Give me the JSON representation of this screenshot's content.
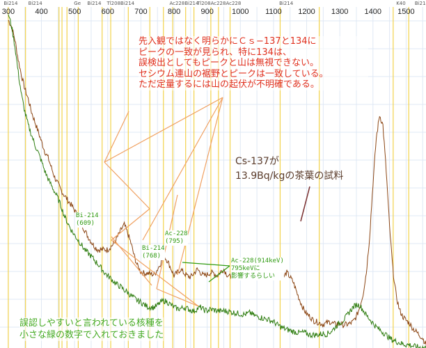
{
  "chart_data": {
    "type": "line",
    "x": [
      300,
      310,
      320,
      330,
      340,
      350,
      360,
      370,
      380,
      390,
      400,
      410,
      420,
      430,
      440,
      450,
      460,
      470,
      480,
      490,
      500,
      510,
      520,
      530,
      540,
      550,
      560,
      570,
      580,
      590,
      600,
      610,
      620,
      630,
      640,
      650,
      660,
      670,
      680,
      690,
      700,
      710,
      720,
      730,
      740,
      750,
      760,
      770,
      780,
      790,
      800,
      810,
      820,
      830,
      840,
      850,
      860,
      870,
      880,
      890,
      900,
      910,
      920,
      930,
      940,
      950,
      960,
      970,
      980,
      990,
      1000,
      1010,
      1020,
      1030,
      1040,
      1050,
      1060,
      1070,
      1080,
      1090,
      1100,
      1110,
      1120,
      1130,
      1140,
      1150,
      1160,
      1170,
      1180,
      1190,
      1200,
      1210,
      1220,
      1230,
      1240,
      1250,
      1260,
      1270,
      1280,
      1290,
      1300,
      1310,
      1320,
      1330,
      1340,
      1350,
      1360,
      1370,
      1380,
      1390,
      1400,
      1410,
      1420,
      1430,
      1440,
      1450,
      1460,
      1470,
      1480,
      1490,
      1500,
      1510,
      1520,
      1530,
      1540,
      1550,
      1560
    ],
    "series": [
      {
        "name": "",
        "color": "#8b4513",
        "values": [
          500,
          490,
          470,
          440,
          415,
          395,
          380,
          360,
          345,
          330,
          315,
          300,
          290,
          275,
          260,
          250,
          240,
          232,
          225,
          218,
          210,
          200,
          190,
          180,
          170,
          162,
          155,
          150,
          150,
          150,
          150,
          155,
          160,
          170,
          180,
          188,
          175,
          160,
          140,
          125,
          116,
          114,
          114,
          113,
          112,
          120,
          130,
          140,
          133,
          122,
          110,
          115,
          120,
          114,
          110,
          108,
          114,
          120,
          115,
          110,
          112,
          115,
          114,
          110,
          116,
          120,
          112,
          108,
          112,
          114,
          108,
          112,
          118,
          112,
          110,
          114,
          120,
          118,
          112,
          118,
          120,
          113,
          110,
          108,
          115,
          108,
          100,
          85,
          72,
          60,
          52,
          48,
          42,
          40,
          38,
          36,
          38,
          40,
          37,
          36,
          38,
          35,
          36,
          37,
          40,
          48,
          62,
          82,
          115,
          170,
          250,
          320,
          355,
          340,
          270,
          185,
          120,
          80,
          58,
          48,
          42,
          38,
          30,
          25,
          20,
          15,
          5
        ]
      },
      {
        "name": "",
        "color": "#2e7d10",
        "values": [
          510,
          490,
          460,
          420,
          385,
          360,
          340,
          325,
          310,
          298,
          285,
          270,
          258,
          248,
          238,
          228,
          215,
          200,
          190,
          180,
          172,
          165,
          158,
          150,
          145,
          140,
          134,
          128,
          122,
          115,
          110,
          106,
          100,
          96,
          93,
          88,
          85,
          80,
          76,
          72,
          70,
          66,
          63,
          62,
          62,
          65,
          70,
          72,
          70,
          66,
          62,
          60,
          60,
          62,
          60,
          58,
          56,
          60,
          62,
          58,
          57,
          59,
          58,
          57,
          56,
          57,
          56,
          55,
          54,
          53,
          52,
          51,
          52,
          54,
          50,
          48,
          47,
          45,
          44,
          42,
          40,
          36,
          33,
          30,
          28,
          27,
          25,
          24,
          23,
          24,
          22,
          20,
          20,
          20,
          21,
          22,
          21,
          24,
          28,
          34,
          38,
          42,
          48,
          56,
          62,
          66,
          65,
          58,
          50,
          44,
          38,
          32,
          28,
          24,
          20,
          15,
          12,
          10,
          8,
          6,
          5,
          5,
          3,
          2,
          1,
          1,
          0
        ]
      }
    ],
    "xlim": [
      275,
      1560
    ],
    "ylim": [
      0,
      520
    ],
    "tick_labels": [
      "300",
      "400",
      "500",
      "600",
      "700",
      "800",
      "900",
      "1000",
      "1100",
      "1200",
      "1300",
      "1400",
      "1500"
    ],
    "tick_values": [
      300,
      400,
      500,
      600,
      700,
      800,
      900,
      1000,
      1100,
      1200,
      1300,
      1400,
      1500
    ],
    "top_labels": [
      {
        "text": "Bi214",
        "x": 282
      },
      {
        "text": "Bi214",
        "x": 356
      },
      {
        "text": "Ge",
        "x": 494
      },
      {
        "text": "Bi214",
        "x": 534
      },
      {
        "text": "Tl208Bi214",
        "x": 593
      },
      {
        "text": "Ac228Bi214",
        "x": 782
      },
      {
        "text": "Tl208Ac228Ac228",
        "x": 865
      },
      {
        "text": "Bi214",
        "x": 1113
      },
      {
        "text": "K40",
        "x": 1466
      },
      {
        "text": "Bi214",
        "x": 1522
      }
    ],
    "nuclide_lines": [
      300,
      352,
      453,
      462,
      477,
      511,
      583,
      609,
      662,
      727,
      768,
      796,
      835,
      860,
      911,
      934,
      969,
      1120,
      1238,
      1461,
      1508
    ],
    "grid": true,
    "title": "",
    "xlabel": "",
    "ylabel": ""
  },
  "annotations": {
    "main_note": [
      "先入観ではなく明らかにＣｓ−137と134に",
      "ピークの一致が見られ、特に134は、",
      "誤検出としてもピークと山は無視できない。",
      "セシウム連山の裾野とピークは一致している。",
      "ただ定量するには山の起伏が不明確である。"
    ],
    "sample_note": [
      "Cs-137が",
      "13.9Bq/kgの茶葉の試料"
    ],
    "bi214_609": [
      "Bi-214",
      "(609)"
    ],
    "bi214_768": [
      "Bi-214",
      "(768)"
    ],
    "ac228_795": [
      "Ac-228",
      "(795)"
    ],
    "ac228_914": [
      "Ac-228(914keV)",
      "795keVに",
      "影響するらしい"
    ],
    "bottom_note": [
      "誤認しやすいと言われている核種を",
      "小さな緑の数字で入れておきました"
    ]
  },
  "colors": {
    "main_note": "#e0301e",
    "sample_note": "#5a3b2a",
    "green_label": "#2e9a10",
    "bottom_note": "#44aa22",
    "orange_line": "#f0a060",
    "yellow_line": "#f2d24a",
    "brown_series": "#8b4513",
    "green_series": "#2e7d10"
  }
}
